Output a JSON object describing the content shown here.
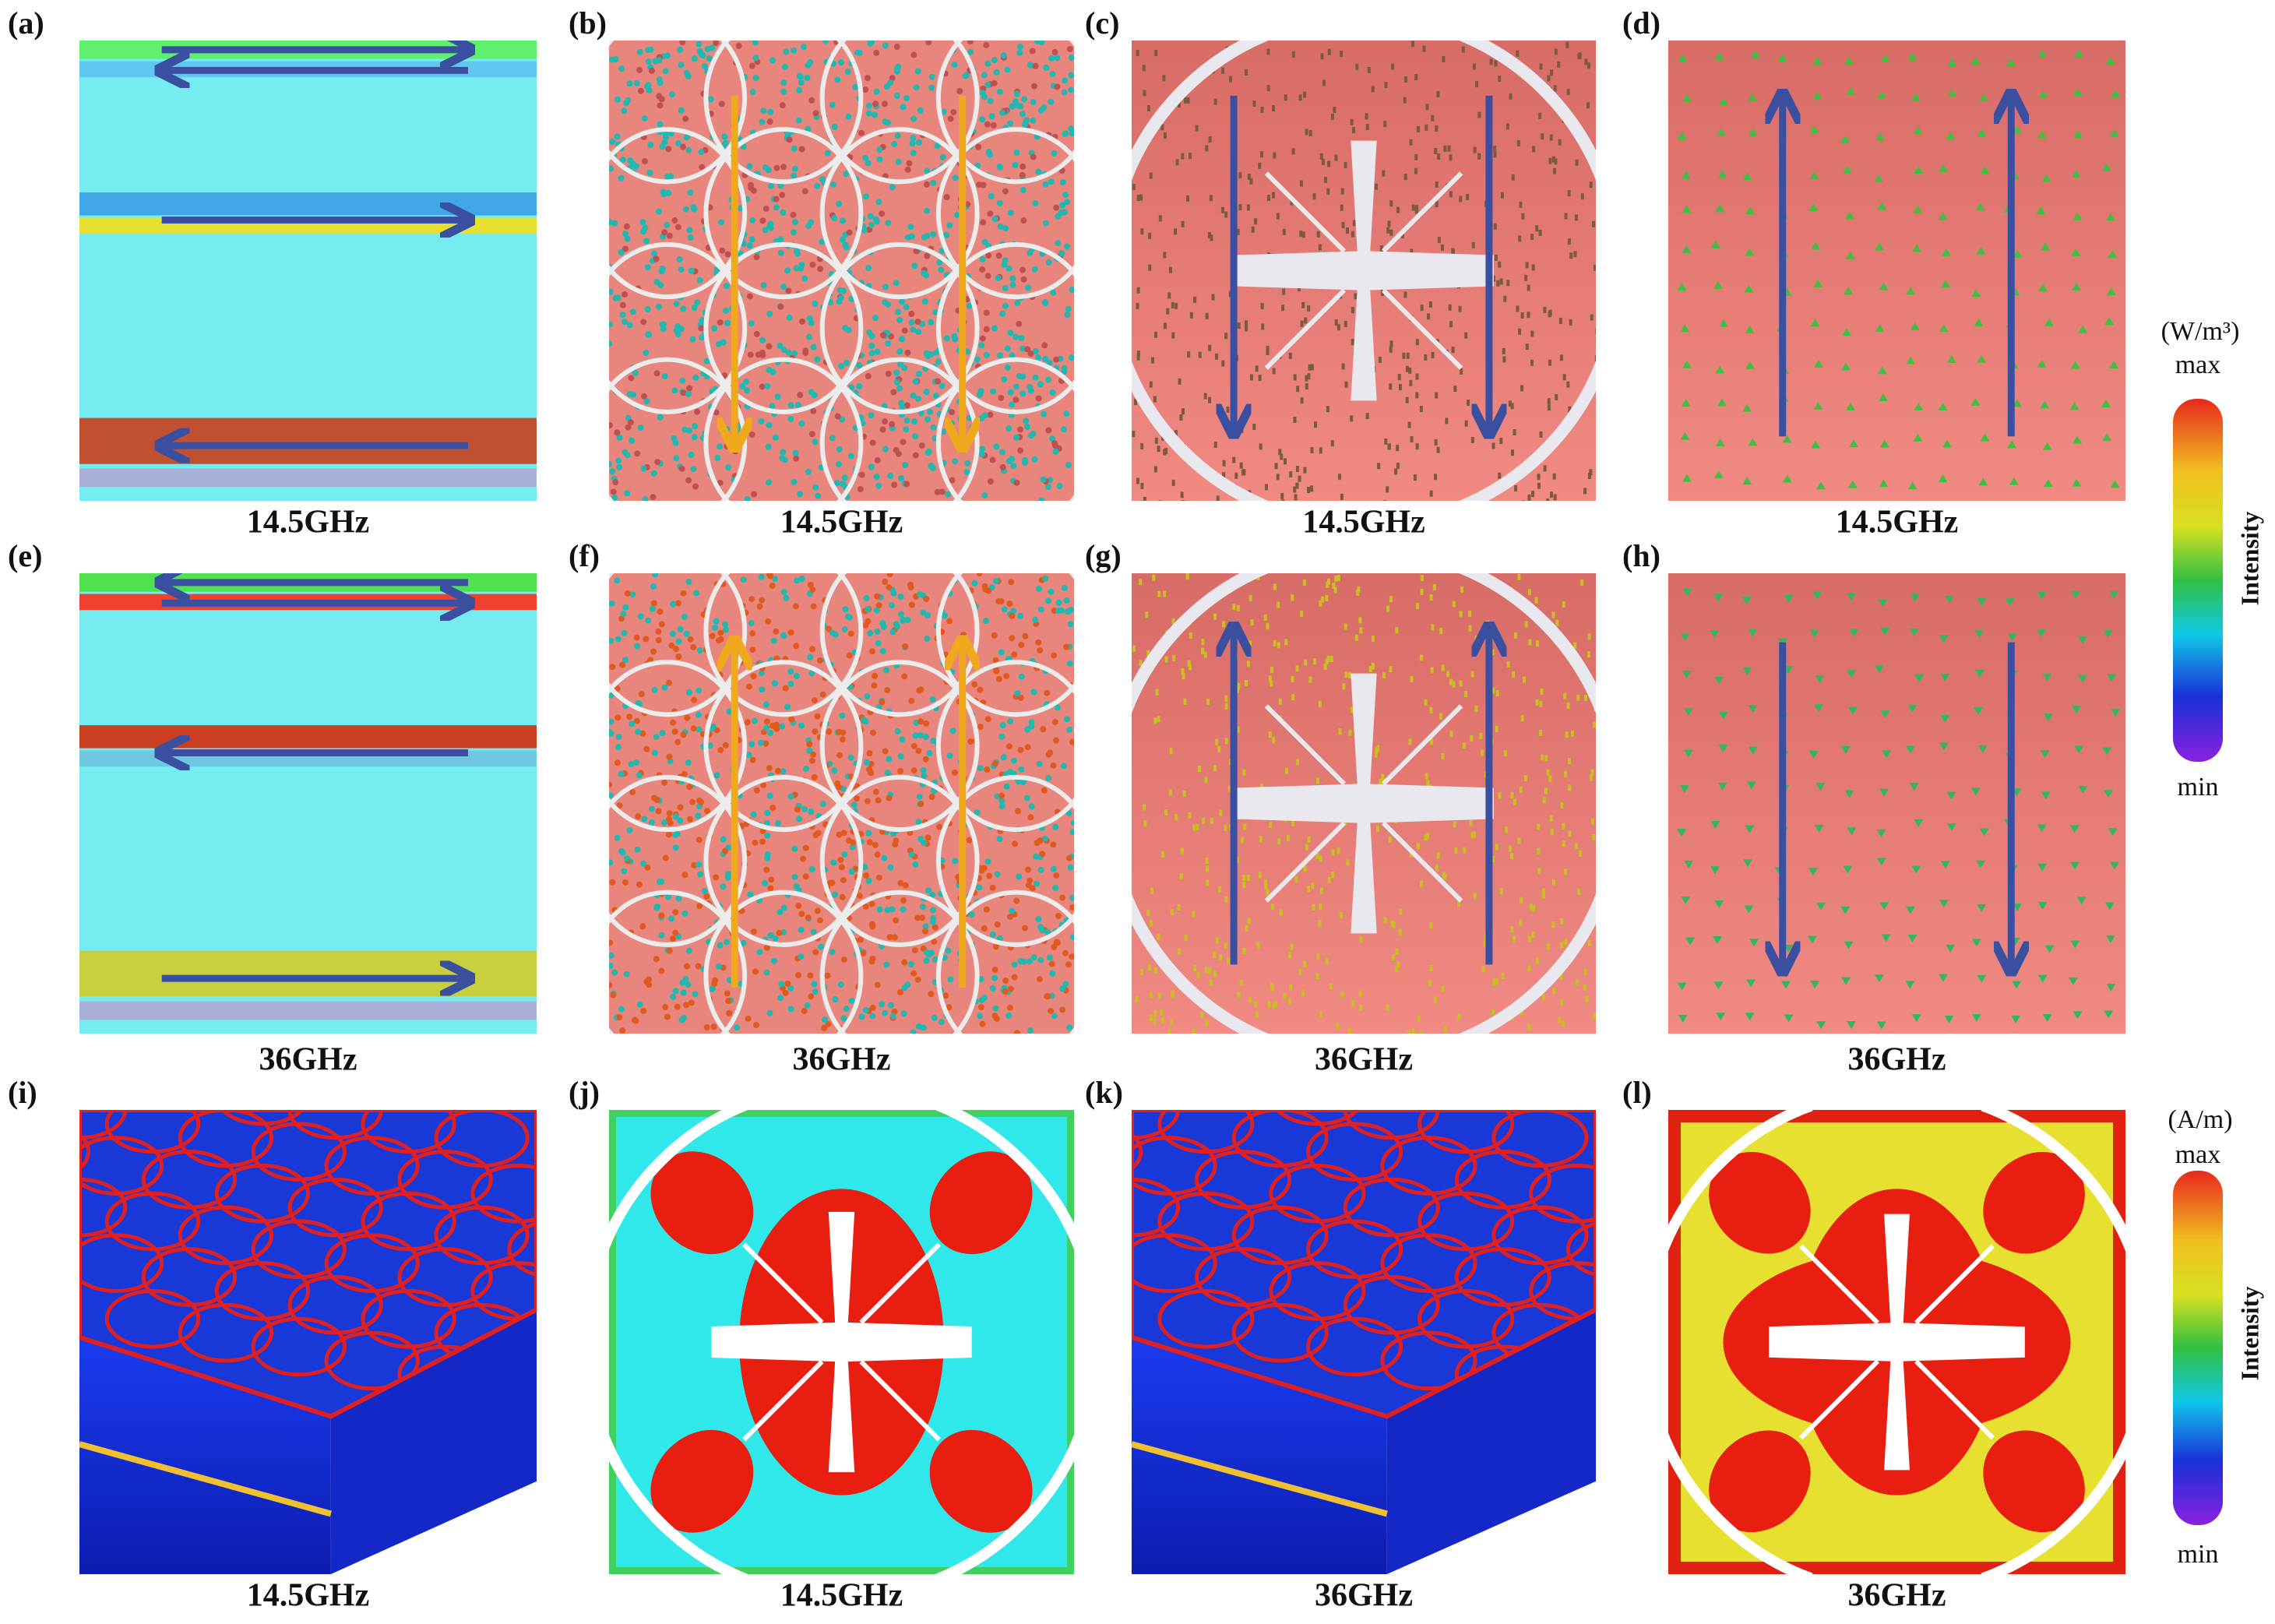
{
  "panels": [
    {
      "label": "(a)",
      "caption": "14.5GHz"
    },
    {
      "label": "(b)",
      "caption": "14.5GHz"
    },
    {
      "label": "(c)",
      "caption": "14.5GHz"
    },
    {
      "label": "(d)",
      "caption": "14.5GHz"
    },
    {
      "label": "(e)",
      "caption": "36GHz"
    },
    {
      "label": "(f)",
      "caption": "36GHz"
    },
    {
      "label": "(g)",
      "caption": "36GHz"
    },
    {
      "label": "(h)",
      "caption": "36GHz"
    },
    {
      "label": "(i)",
      "caption": "14.5GHz"
    },
    {
      "label": "(j)",
      "caption": "14.5GHz"
    },
    {
      "label": "(k)",
      "caption": "36GHz"
    },
    {
      "label": "(l)",
      "caption": "36GHz"
    }
  ],
  "colorbars": [
    {
      "unit": "(W/m³)",
      "max": "max",
      "title": "Intensity",
      "min": "min"
    },
    {
      "unit": "(A/m)",
      "max": "max",
      "title": "Intensity",
      "min": "min"
    }
  ]
}
